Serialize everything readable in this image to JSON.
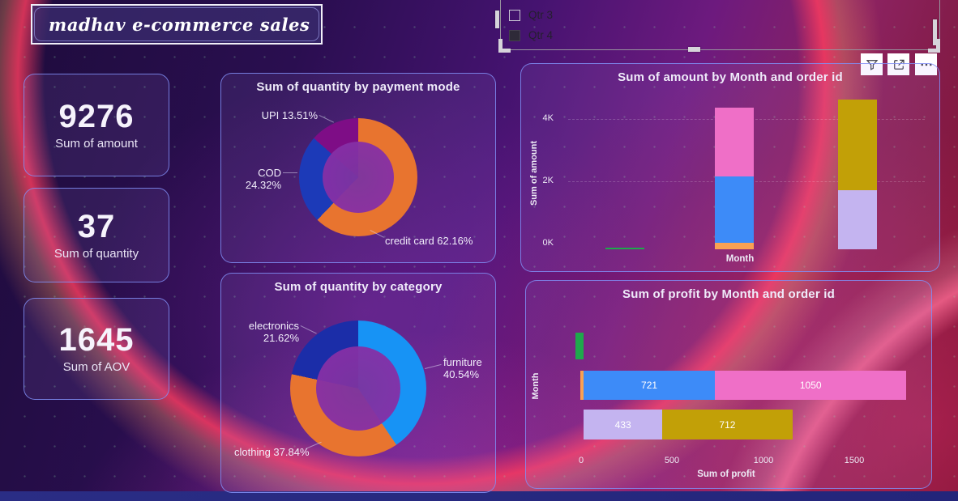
{
  "title": "madhav e-commerce sales",
  "slicer": {
    "items": [
      {
        "label": "Qtr 3",
        "checked": false
      },
      {
        "label": "Qtr 4",
        "checked": true
      }
    ]
  },
  "toolbar": {
    "icons": [
      "filter-icon",
      "focus-mode-icon",
      "more-options-icon"
    ],
    "more_glyph": "•••"
  },
  "kpis": [
    {
      "value": "9276",
      "label": "Sum of amount"
    },
    {
      "value": "37",
      "label": "Sum of quantity"
    },
    {
      "value": "1645",
      "label": "Sum of AOV"
    }
  ],
  "colors": {
    "accent_border": "#808EF5",
    "green": "#1FA84C",
    "orange_bar": "#F9A153",
    "blue_bar": "#3D8BF8",
    "pink_bar": "#EF6FC7",
    "lavender_bar": "#C4B4F0",
    "yellow_bar": "#C2A007",
    "donut_orange": "#E8742F",
    "donut_royal": "#1C3AB8",
    "donut_magenta": "#7E0D86",
    "donut_lightblue": "#1793F5",
    "donut_navy": "#1B2DA8"
  },
  "chart_data": [
    {
      "id": "quantity-by-payment-mode",
      "type": "pie",
      "donut": true,
      "title": "Sum of quantity by payment mode",
      "slices": [
        {
          "name": "credit card",
          "pct": 62.16,
          "color": "#E8742F",
          "label": "credit card 62.16%"
        },
        {
          "name": "COD",
          "pct": 24.32,
          "color": "#1C3AB8",
          "label": "COD 24.32%"
        },
        {
          "name": "UPI",
          "pct": 13.51,
          "color": "#7E0D86",
          "label": "UPI 13.51%"
        }
      ]
    },
    {
      "id": "quantity-by-category",
      "type": "pie",
      "donut": true,
      "title": "Sum of quantity by category",
      "slices": [
        {
          "name": "furniture",
          "pct": 40.54,
          "color": "#1793F5",
          "label": "furniture 40.54%"
        },
        {
          "name": "clothing",
          "pct": 37.84,
          "color": "#E8742F",
          "label": "clothing 37.84%"
        },
        {
          "name": "electronics",
          "pct": 21.62,
          "color": "#1B2DA8",
          "label": "electronics 21.62%"
        }
      ]
    },
    {
      "id": "amount-by-month-and-order-id",
      "type": "bar",
      "orientation": "vertical",
      "stacked": true,
      "title": "Sum of amount by Month and order id",
      "xlabel": "Month",
      "ylabel": "Sum of amount",
      "yticks": [
        "0K",
        "2K",
        "4K"
      ],
      "ylim": [
        0,
        4800
      ],
      "bars": [
        {
          "segments": [
            {
              "value": 40,
              "color": "#1FA84C"
            }
          ]
        },
        {
          "segments": [
            {
              "value": 210,
              "color": "#F9A153"
            },
            {
              "value": 2100,
              "color": "#3D8BF8"
            },
            {
              "value": 2200,
              "color": "#EF6FC7"
            }
          ]
        },
        {
          "segments": [
            {
              "value": 1890,
              "color": "#C4B4F0"
            },
            {
              "value": 2870,
              "color": "#C2A007"
            }
          ]
        }
      ]
    },
    {
      "id": "profit-by-month-and-order-id",
      "type": "bar",
      "orientation": "horizontal",
      "stacked": true,
      "title": "Sum of profit by Month and order id",
      "xlabel": "Sum of profit",
      "ylabel": "Month",
      "xticks": [
        "0",
        "500",
        "1000",
        "1500"
      ],
      "xlim": [
        0,
        1900
      ],
      "bars": [
        {
          "segments": [
            {
              "value": -45,
              "color": "#1FA84C"
            }
          ]
        },
        {
          "segments": [
            {
              "value": -18,
              "color": "#F9A153"
            },
            {
              "value": 721,
              "color": "#3D8BF8",
              "label": "721"
            },
            {
              "value": 1050,
              "color": "#EF6FC7",
              "label": "1050"
            }
          ]
        },
        {
          "segments": [
            {
              "value": 433,
              "color": "#C4B4F0",
              "label": "433"
            },
            {
              "value": 712,
              "color": "#C2A007",
              "label": "712"
            }
          ]
        }
      ]
    }
  ]
}
